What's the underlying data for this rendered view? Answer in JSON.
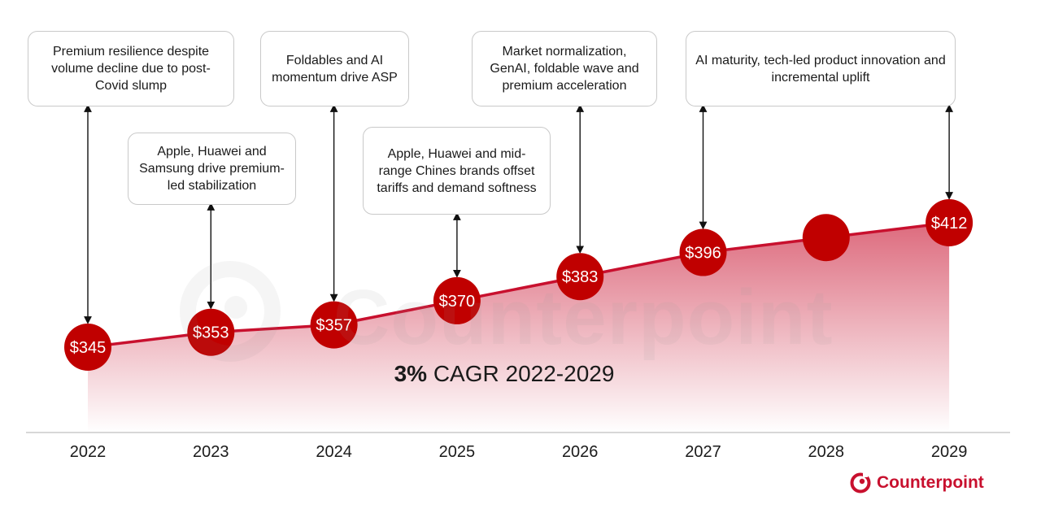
{
  "chart_data": {
    "type": "line",
    "categories": [
      "2022",
      "2023",
      "2024",
      "2025",
      "2026",
      "2027",
      "2028",
      "2029"
    ],
    "series": [
      {
        "values": [
          345,
          353,
          357,
          370,
          383,
          396,
          null,
          412
        ],
        "labels": [
          "$345",
          "$353",
          "$357",
          "$370",
          "$383",
          "$396",
          "",
          "$412"
        ]
      }
    ],
    "annotation": {
      "bold": "3%",
      "rest": " CAGR 2022-2029"
    },
    "notes": [
      {
        "category": "2022",
        "text": "Premium resilience despite volume decline due to post-Covid slump"
      },
      {
        "category": "2023",
        "text": "Apple, Huawei and Samsung drive premium-led stabilization"
      },
      {
        "category": "2024",
        "text": "Foldables and AI momentum drive ASP"
      },
      {
        "category": "2025",
        "text": "Apple, Huawei and mid-range Chines brands offset tariffs and demand softness"
      },
      {
        "category": "2026",
        "text": "Market normalization, GenAI, foldable wave and premium acceleration"
      },
      {
        "category": "2027",
        "text": "AI maturity, tech-led product innovation and incremental uplift"
      }
    ],
    "grid": false,
    "legend": "none",
    "colors": {
      "accent": "#c8102e",
      "marker": "#c00000"
    }
  },
  "brand": {
    "logo_text": "Counterpoint",
    "watermark_text": "Counterpoint",
    "logo_icon": "counterpoint-logo-icon"
  }
}
